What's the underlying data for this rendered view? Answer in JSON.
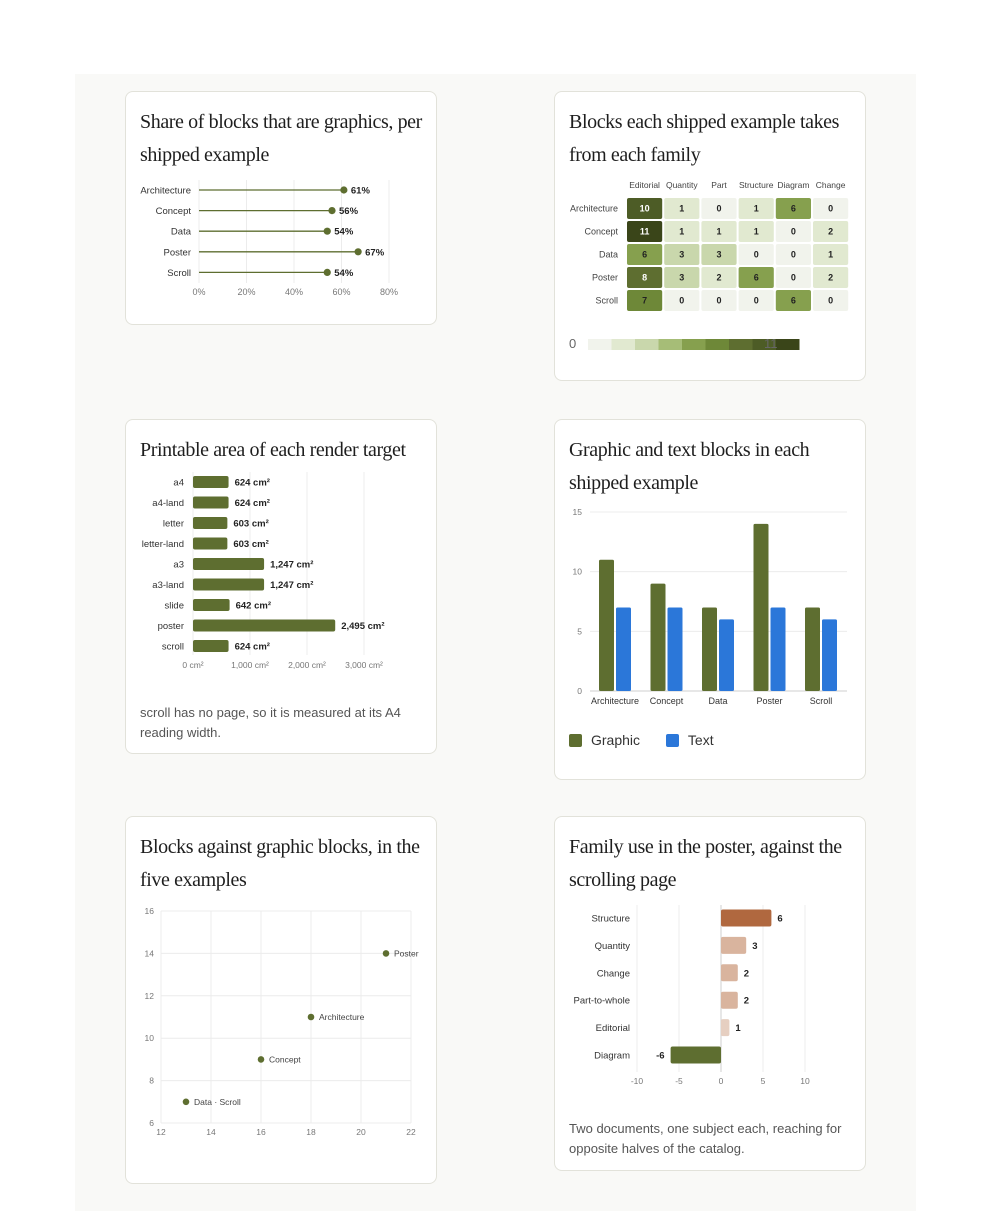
{
  "colors": {
    "green": "#5e6e30",
    "blue": "#2b77d9",
    "orange": "#b0683f",
    "orange_light": "#d9b49e",
    "orange_lighter": "#e6cfc1"
  },
  "cards": {
    "share": {
      "title": "Share of blocks that are graphics, per shipped example"
    },
    "families": {
      "title": "Blocks each shipped example takes from each family"
    },
    "area": {
      "title": "Printable area of each render target",
      "note": "scroll has no page, so it is measured at its A4 reading width."
    },
    "counts": {
      "title": "Graphic and text blocks in each shipped example"
    },
    "scatter": {
      "title": "Blocks against graphic blocks, in the five examples"
    },
    "diverge": {
      "title": "Family use in the poster, against the scrolling page",
      "note": "Two documents, one subject each, reaching for opposite halves of the catalog."
    }
  },
  "chart_data": [
    {
      "id": "share",
      "type": "lollipop",
      "categories": [
        "Architecture",
        "Concept",
        "Data",
        "Poster",
        "Scroll"
      ],
      "values": [
        61,
        56,
        54,
        67,
        54
      ],
      "labels": [
        "61%",
        "56%",
        "54%",
        "67%",
        "54%"
      ],
      "xticks": [
        "0%",
        "20%",
        "40%",
        "60%",
        "80%"
      ],
      "xlim": [
        0,
        80
      ]
    },
    {
      "id": "families",
      "type": "heatmap",
      "columns": [
        "Editorial",
        "Quantity",
        "Part",
        "Structure",
        "Diagram",
        "Change"
      ],
      "rows": [
        "Architecture",
        "Concept",
        "Data",
        "Poster",
        "Scroll"
      ],
      "values": [
        [
          10,
          1,
          0,
          1,
          6,
          0
        ],
        [
          11,
          1,
          1,
          1,
          0,
          2
        ],
        [
          6,
          3,
          3,
          0,
          0,
          1
        ],
        [
          8,
          3,
          2,
          6,
          0,
          2
        ],
        [
          7,
          0,
          0,
          0,
          6,
          0
        ]
      ],
      "scale_min": "0",
      "scale_max": "11"
    },
    {
      "id": "area",
      "type": "bar",
      "orientation": "horizontal",
      "categories": [
        "a4",
        "a4-land",
        "letter",
        "letter-land",
        "a3",
        "a3-land",
        "slide",
        "poster",
        "scroll"
      ],
      "values": [
        624,
        624,
        603,
        603,
        1247,
        1247,
        642,
        2495,
        624
      ],
      "labels": [
        "624 cm²",
        "624 cm²",
        "603 cm²",
        "603 cm²",
        "1,247 cm²",
        "1,247 cm²",
        "642 cm²",
        "2,495 cm²",
        "624 cm²"
      ],
      "xticks": [
        "0 cm²",
        "1,000 cm²",
        "2,000 cm²",
        "3,000 cm²"
      ],
      "xlim": [
        0,
        3000
      ]
    },
    {
      "id": "counts",
      "type": "bar",
      "categories": [
        "Architecture",
        "Concept",
        "Data",
        "Poster",
        "Scroll"
      ],
      "series": [
        {
          "name": "Graphic",
          "values": [
            11,
            9,
            7,
            14,
            7
          ]
        },
        {
          "name": "Text",
          "values": [
            7,
            7,
            6,
            7,
            6
          ]
        }
      ],
      "yticks": [
        "0",
        "5",
        "10",
        "15"
      ],
      "ylim": [
        0,
        15
      ]
    },
    {
      "id": "scatter",
      "type": "scatter",
      "points": [
        {
          "label": "Poster",
          "x": 21,
          "y": 14
        },
        {
          "label": "Architecture",
          "x": 18,
          "y": 11
        },
        {
          "label": "Concept",
          "x": 16,
          "y": 9
        },
        {
          "label": "Data · Scroll",
          "x": 13,
          "y": 7
        }
      ],
      "xticks": [
        "12",
        "14",
        "16",
        "18",
        "20",
        "22"
      ],
      "yticks": [
        "6",
        "8",
        "10",
        "12",
        "14",
        "16"
      ],
      "xlim": [
        12,
        22
      ],
      "ylim": [
        6,
        16
      ]
    },
    {
      "id": "diverge",
      "type": "bar",
      "orientation": "horizontal-diverging",
      "categories": [
        "Structure",
        "Quantity",
        "Change",
        "Part-to-whole",
        "Editorial",
        "Diagram"
      ],
      "values": [
        6,
        3,
        2,
        2,
        1,
        -6
      ],
      "labels": [
        "6",
        "3",
        "2",
        "2",
        "1",
        "-6"
      ],
      "xticks": [
        "-10",
        "-5",
        "0",
        "5",
        "10"
      ],
      "xlim": [
        -10,
        10
      ]
    }
  ]
}
